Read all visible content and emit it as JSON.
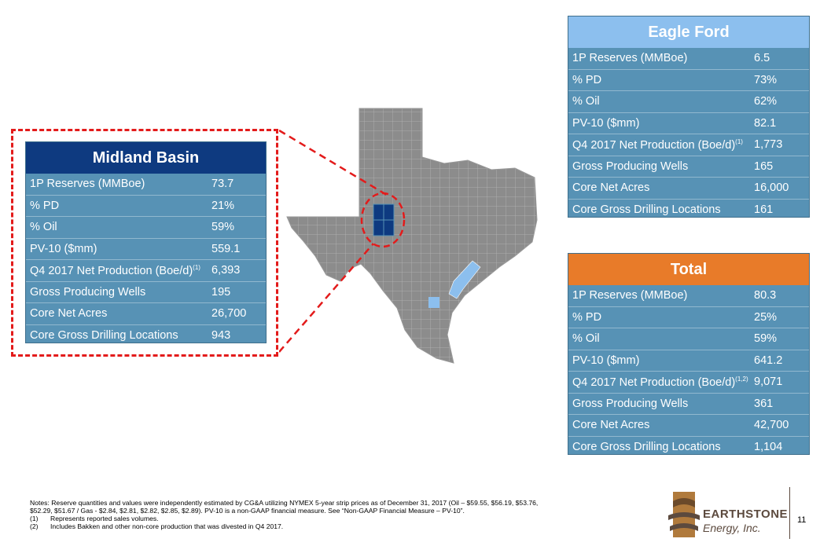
{
  "midland": {
    "title": "Midland Basin",
    "rows": [
      {
        "label": "1P Reserves (MMBoe)",
        "sup": "",
        "value": "73.7"
      },
      {
        "label": "% PD",
        "sup": "",
        "value": "21%"
      },
      {
        "label": "% Oil",
        "sup": "",
        "value": "59%"
      },
      {
        "label": "PV-10 ($mm)",
        "sup": "",
        "value": "559.1"
      },
      {
        "label": "Q4 2017 Net Production (Boe/d)",
        "sup": "(1)",
        "value": "6,393"
      },
      {
        "label": "Gross Producing Wells",
        "sup": "",
        "value": "195"
      },
      {
        "label": "Core Net Acres",
        "sup": "",
        "value": "26,700"
      },
      {
        "label": "Core Gross Drilling Locations",
        "sup": "",
        "value": "943"
      }
    ]
  },
  "eagle_ford": {
    "title": "Eagle Ford",
    "rows": [
      {
        "label": "1P Reserves (MMBoe)",
        "sup": "",
        "value": "6.5"
      },
      {
        "label": "% PD",
        "sup": "",
        "value": "73%"
      },
      {
        "label": "% Oil",
        "sup": "",
        "value": "62%"
      },
      {
        "label": "PV-10 ($mm)",
        "sup": "",
        "value": "82.1"
      },
      {
        "label": "Q4 2017 Net Production (Boe/d)",
        "sup": "(1)",
        "value": "1,773"
      },
      {
        "label": "Gross Producing Wells",
        "sup": "",
        "value": "165"
      },
      {
        "label": "Core Net Acres",
        "sup": "",
        "value": "16,000"
      },
      {
        "label": "Core Gross Drilling Locations",
        "sup": "",
        "value": "161"
      }
    ]
  },
  "total": {
    "title": "Total",
    "rows": [
      {
        "label": "1P Reserves (MMBoe)",
        "sup": "",
        "value": "80.3"
      },
      {
        "label": "% PD",
        "sup": "",
        "value": "25%"
      },
      {
        "label": "% Oil",
        "sup": "",
        "value": "59%"
      },
      {
        "label": "PV-10 ($mm)",
        "sup": "",
        "value": "641.2"
      },
      {
        "label": "Q4 2017 Net Production (Boe/d)",
        "sup": "(1,2)",
        "value": "9,071"
      },
      {
        "label": "Gross Producing Wells",
        "sup": "",
        "value": "361"
      },
      {
        "label": "Core Net Acres",
        "sup": "",
        "value": "42,700"
      },
      {
        "label": "Core Gross Drilling Locations",
        "sup": "",
        "value": "1,104"
      }
    ]
  },
  "notes": {
    "line1": "Notes:  Reserve quantities and values were independently estimated by CG&A utilizing NYMEX 5-year strip prices as of December 31, 2017  (Oil – $59.55, $56.19, $53.76,",
    "line2": "$52.29, $51.67 / Gas - $2.84, $2.81, $2.82, $2.85,  $2.89).  PV-10 is a non-GAAP financial measure. See “Non-GAAP Financial Measure – PV-10”.",
    "fn1_num": "(1)",
    "fn1_text": "Represents reported sales volumes.",
    "fn2_num": "(2)",
    "fn2_text": "Includes Bakken and other non-core production that was divested in Q4 2017."
  },
  "logo": {
    "name": "EARTHSTONE",
    "sub": "Energy, Inc."
  },
  "page_number": "11",
  "colors": {
    "panel_body": "#5792b5",
    "midland_header": "#0e3a80",
    "eagle_ford_header": "#8cbfee",
    "total_header": "#e87b29",
    "dashed_red": "#e31b1b",
    "map_gray": "#8c8c8c",
    "midland_counties": "#0e3a80",
    "eagle_ford_counties": "#8cbfee"
  }
}
